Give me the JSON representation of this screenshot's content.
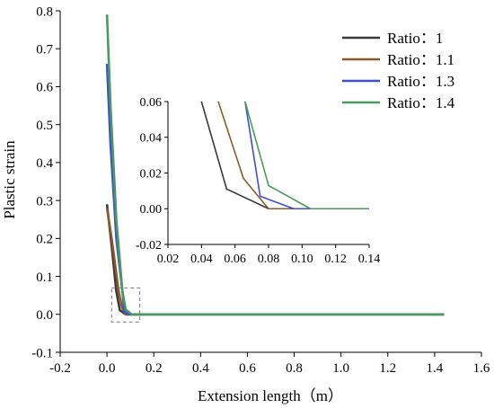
{
  "chart_data": [
    {
      "type": "line",
      "xlabel": "Extension length（m）",
      "ylabel": "Plastic strain",
      "xlim": [
        -0.2,
        1.6
      ],
      "ylim": [
        -0.1,
        0.8
      ],
      "xticks": [
        "-0.2",
        "0.0",
        "0.2",
        "0.4",
        "0.6",
        "0.8",
        "1.0",
        "1.2",
        "1.4",
        "1.6"
      ],
      "yticks": [
        "-0.1",
        "0.0",
        "0.1",
        "0.2",
        "0.3",
        "0.4",
        "0.5",
        "0.6",
        "0.7",
        "0.8"
      ],
      "grid": false,
      "legend": "top-right",
      "series": [
        {
          "name": "Ratio：1",
          "color": "#3a3a3a",
          "x": [
            0.0,
            0.02,
            0.04,
            0.055,
            0.08,
            1.44
          ],
          "y": [
            0.29,
            0.18,
            0.06,
            0.011,
            0.0,
            0.0
          ]
        },
        {
          "name": "Ratio：1.1",
          "color": "#8b5a2b",
          "x": [
            0.0,
            0.02,
            0.05,
            0.065,
            0.08,
            1.44
          ],
          "y": [
            0.28,
            0.2,
            0.06,
            0.017,
            0.0,
            0.0
          ]
        },
        {
          "name": "Ratio：1.3",
          "color": "#3c4fd8",
          "x": [
            0.0,
            0.015,
            0.04,
            0.066,
            0.075,
            0.095,
            1.44
          ],
          "y": [
            0.66,
            0.45,
            0.2,
            0.06,
            0.007,
            0.0,
            0.0
          ]
        },
        {
          "name": "Ratio：1.4",
          "color": "#4a9a5a",
          "x": [
            0.0,
            0.015,
            0.04,
            0.066,
            0.08,
            0.105,
            1.44
          ],
          "y": [
            0.79,
            0.55,
            0.25,
            0.06,
            0.013,
            0.0,
            0.0
          ]
        }
      ]
    },
    {
      "type": "line",
      "xlim": [
        0.02,
        0.14
      ],
      "ylim": [
        -0.02,
        0.06
      ],
      "xticks": [
        "0.02",
        "0.04",
        "0.06",
        "0.08",
        "0.10",
        "0.12",
        "0.14"
      ],
      "yticks": [
        "-0.02",
        "0.00",
        "0.02",
        "0.04",
        "0.06"
      ],
      "grid": false
    }
  ]
}
